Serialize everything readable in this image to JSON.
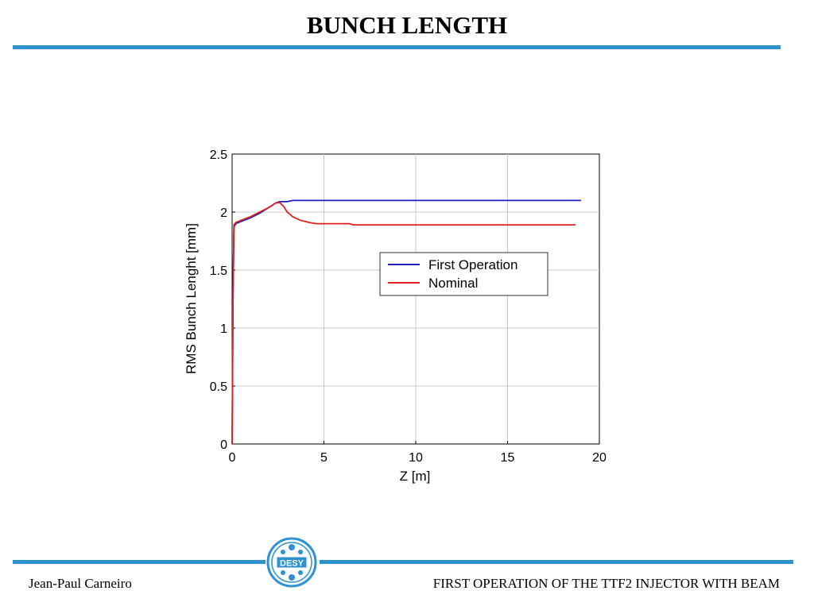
{
  "slide": {
    "title": "BUNCH LENGTH",
    "footer_left": "Jean-Paul Carneiro",
    "footer_right": "FIRST OPERATION OF THE TTF2 INJECTOR WITH BEAM",
    "logo_text": "DESY",
    "accent_color": "#2c93d0"
  },
  "chart_data": {
    "type": "line",
    "title": "",
    "xlabel": "Z [m]",
    "ylabel": "RMS Bunch Lenght [mm]",
    "xlim": [
      0,
      20
    ],
    "ylim": [
      0,
      2.5
    ],
    "xticks": [
      "0",
      "5",
      "10",
      "15",
      "20"
    ],
    "yticks": [
      "0",
      "0.5",
      "1",
      "1.5",
      "2",
      "2.5"
    ],
    "grid": true,
    "legend_position": "center-right",
    "series": [
      {
        "name": "First Operation",
        "color": "#1f1fbf",
        "x": [
          0,
          0.05,
          0.1,
          0.2,
          0.5,
          1.0,
          1.5,
          2.0,
          2.4,
          2.6,
          3.0,
          3.3,
          5,
          10,
          15,
          19
        ],
        "y": [
          0,
          1.3,
          1.87,
          1.9,
          1.92,
          1.95,
          1.99,
          2.04,
          2.08,
          2.09,
          2.09,
          2.1,
          2.1,
          2.1,
          2.1,
          2.1
        ]
      },
      {
        "name": "Nominal",
        "color": "#dd2222",
        "x": [
          0,
          0.05,
          0.1,
          0.2,
          0.5,
          1.0,
          1.5,
          2.0,
          2.4,
          2.6,
          2.8,
          3.0,
          3.3,
          3.7,
          4.2,
          4.6,
          5.0,
          6.0,
          6.4,
          6.6,
          10,
          15,
          18.7
        ],
        "y": [
          0,
          1.3,
          1.89,
          1.91,
          1.93,
          1.96,
          2.0,
          2.04,
          2.08,
          2.08,
          2.05,
          2.0,
          1.96,
          1.93,
          1.91,
          1.9,
          1.9,
          1.9,
          1.9,
          1.89,
          1.89,
          1.89,
          1.89
        ]
      }
    ]
  }
}
